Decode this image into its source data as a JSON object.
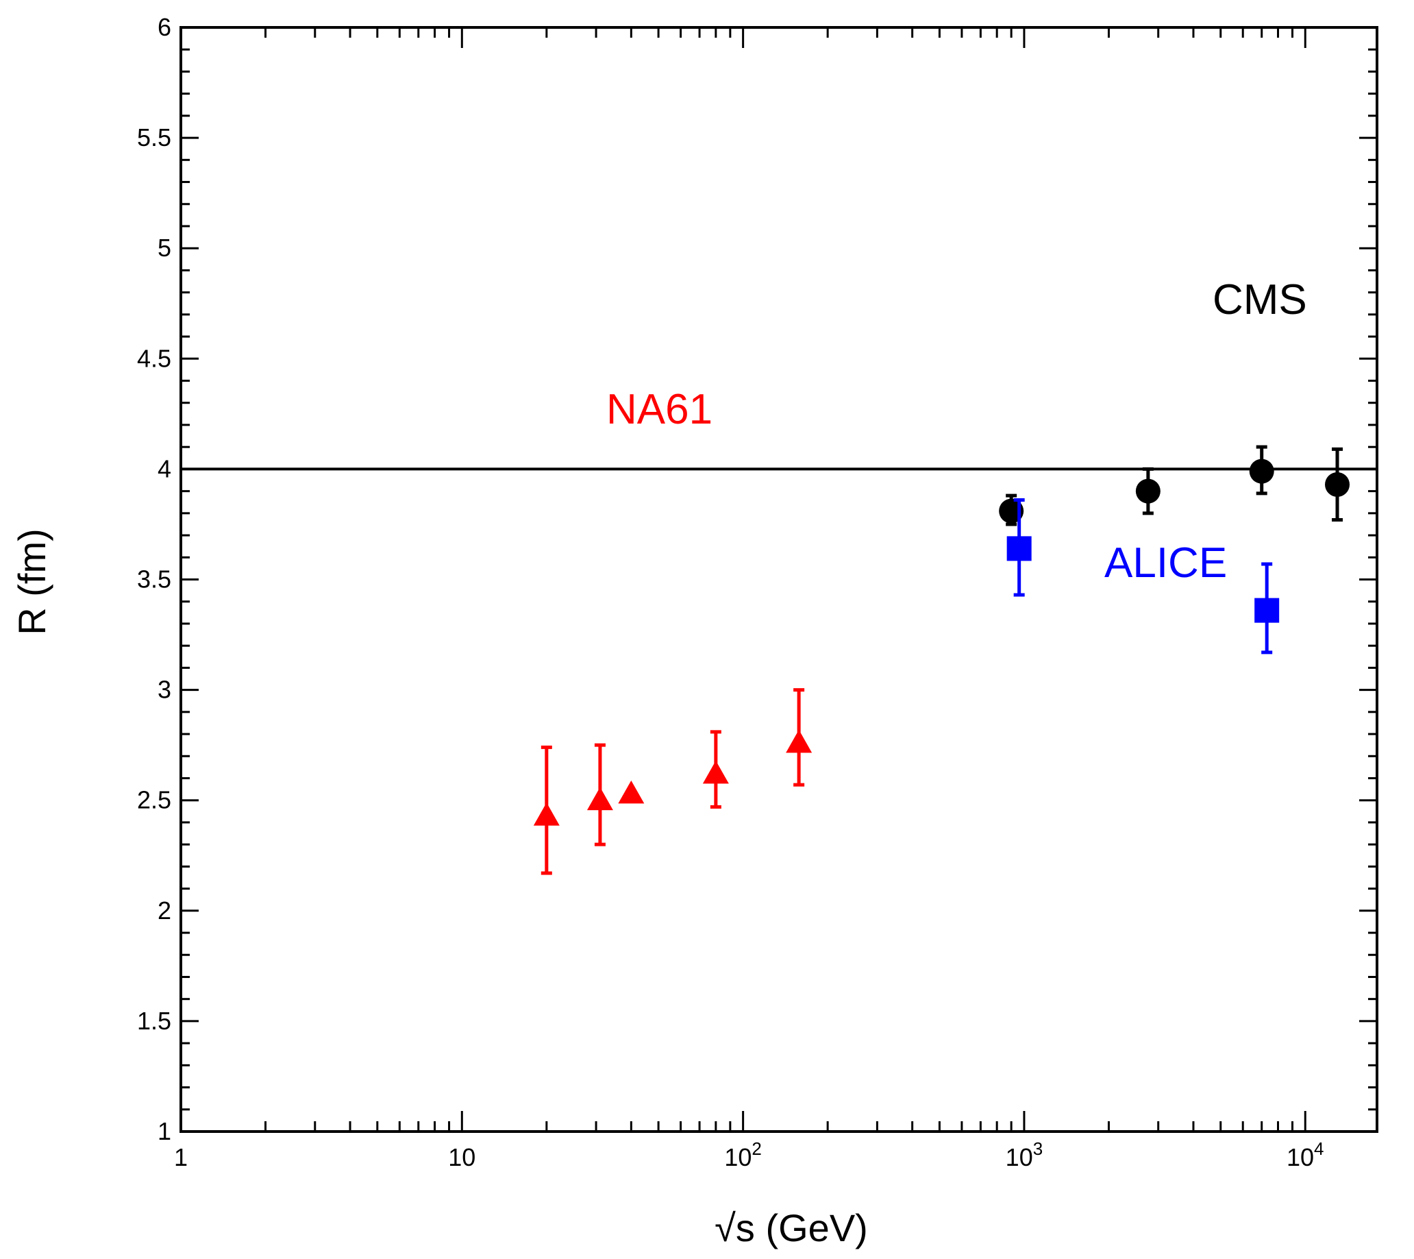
{
  "chart_data": {
    "type": "scatter",
    "title": "",
    "xlabel": "√s (GeV)",
    "ylabel": "R (fm)",
    "xscale": "log",
    "xlim": [
      1,
      18000
    ],
    "ylim": [
      1,
      6
    ],
    "grid": false,
    "y_ticks": [
      "1",
      "1.5",
      "2",
      "2.5",
      "3",
      "3.5",
      "4",
      "4.5",
      "5",
      "5.5",
      "6"
    ],
    "x_ticks": [
      {
        "value": 1,
        "base": "1",
        "exp": ""
      },
      {
        "value": 10,
        "base": "10",
        "exp": ""
      },
      {
        "value": 100,
        "base": "10",
        "exp": "2"
      },
      {
        "value": 1000,
        "base": "10",
        "exp": "3"
      },
      {
        "value": 10000,
        "base": "10",
        "exp": "4"
      }
    ],
    "reference_line": {
      "y": 4.0,
      "color": "#000000"
    },
    "series": [
      {
        "name": "NA61",
        "label": "NA61",
        "marker": "triangle",
        "color": "#ff0000",
        "points": [
          {
            "x": 20,
            "y": 2.43,
            "ylo": 2.17,
            "yhi": 2.74
          },
          {
            "x": 31,
            "y": 2.5,
            "ylo": 2.3,
            "yhi": 2.75
          },
          {
            "x": 40,
            "y": 2.53,
            "ylo": null,
            "yhi": null
          },
          {
            "x": 80,
            "y": 2.62,
            "ylo": 2.47,
            "yhi": 2.81
          },
          {
            "x": 158,
            "y": 2.76,
            "ylo": 2.57,
            "yhi": 3.0
          }
        ]
      },
      {
        "name": "CMS",
        "label": "CMS",
        "marker": "circle",
        "color": "#000000",
        "points": [
          {
            "x": 900,
            "y": 3.81,
            "ylo": 3.75,
            "yhi": 3.88
          },
          {
            "x": 2760,
            "y": 3.9,
            "ylo": 3.8,
            "yhi": 4.0
          },
          {
            "x": 7000,
            "y": 3.99,
            "ylo": 3.89,
            "yhi": 4.1
          },
          {
            "x": 13000,
            "y": 3.93,
            "ylo": 3.77,
            "yhi": 4.09
          }
        ]
      },
      {
        "name": "ALICE",
        "label": "ALICE",
        "marker": "square",
        "color": "#0000ff",
        "points": [
          {
            "x": 960,
            "y": 3.64,
            "ylo": 3.43,
            "yhi": 3.86
          },
          {
            "x": 7300,
            "y": 3.36,
            "ylo": 3.17,
            "yhi": 3.57
          }
        ]
      }
    ]
  }
}
